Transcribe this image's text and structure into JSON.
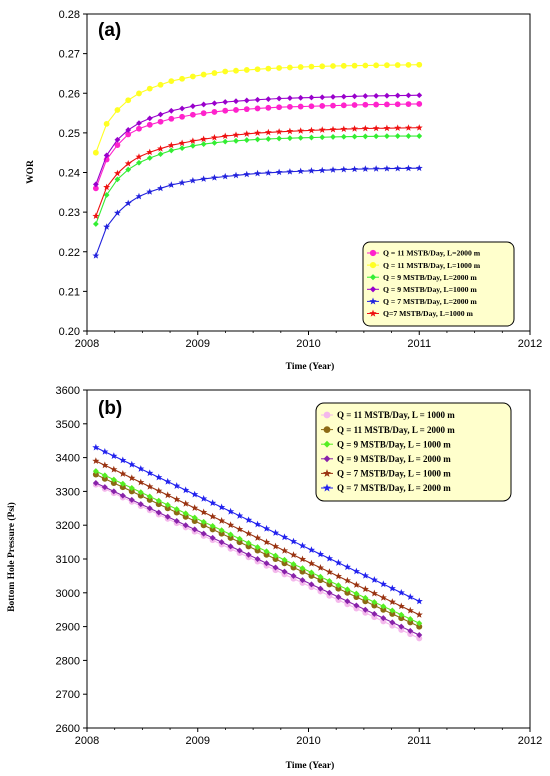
{
  "chart_data": [
    {
      "type": "line",
      "panel_label": "(a)",
      "xlabel": "Time (Year)",
      "ylabel": "WOR",
      "xlim": [
        2008,
        2012
      ],
      "ylim": [
        0.2,
        0.28
      ],
      "xticks": [
        "2008",
        "2009",
        "2010",
        "2011",
        "2012"
      ],
      "yticks": [
        "0.20",
        "0.21",
        "0.22",
        "0.23",
        "0.24",
        "0.25",
        "0.26",
        "0.27",
        "0.28"
      ],
      "grid": false,
      "legend_position": "bottom-right",
      "x": [
        2008.08,
        2008.17,
        2008.25,
        2008.33,
        2008.5,
        2008.75,
        2009.0,
        2009.25,
        2009.5,
        2009.75,
        2010.0,
        2010.25,
        2010.5,
        2010.75,
        2011.0
      ],
      "series": [
        {
          "name": "Q = 11 MSTB/Day, L=2000 m",
          "color": "#ff22cc",
          "marker": "circle",
          "values": [
            0.236,
            0.243,
            0.246,
            0.249,
            0.2515,
            0.2535,
            0.2548,
            0.2556,
            0.2561,
            0.2565,
            0.2567,
            0.2569,
            0.2571,
            0.2572,
            0.2573
          ]
        },
        {
          "name": "Q = 11 MSTB/Day, L=1000 m",
          "color": "#ffff22",
          "marker": "circle",
          "values": [
            0.245,
            0.252,
            0.255,
            0.2575,
            0.2605,
            0.263,
            0.2645,
            0.2655,
            0.266,
            0.2664,
            0.2667,
            0.2669,
            0.267,
            0.2671,
            0.2672
          ]
        },
        {
          "name": "Q = 9 MSTB/Day, L=2000 m",
          "color": "#33ee33",
          "marker": "diamond",
          "values": [
            0.227,
            0.234,
            0.2375,
            0.24,
            0.243,
            0.2455,
            0.247,
            0.2478,
            0.2483,
            0.2486,
            0.2488,
            0.249,
            0.2491,
            0.2492,
            0.2492
          ]
        },
        {
          "name": "Q = 9 MSTB/Day, L=1000 m",
          "color": "#9900cc",
          "marker": "diamond",
          "values": [
            0.237,
            0.244,
            0.2475,
            0.25,
            0.253,
            0.2555,
            0.257,
            0.2578,
            0.2583,
            0.2587,
            0.2589,
            0.2591,
            0.2593,
            0.2594,
            0.2595
          ]
        },
        {
          "name": "Q = 7 MSTB/Day, L=2000 m",
          "color": "#2222dd",
          "marker": "star",
          "values": [
            0.219,
            0.226,
            0.229,
            0.2315,
            0.2345,
            0.2368,
            0.2382,
            0.239,
            0.2397,
            0.2401,
            0.2404,
            0.2407,
            0.2409,
            0.241,
            0.2411
          ]
        },
        {
          "name": "Q=7 MSTB/Day, L=1000 m",
          "color": "#ee1111",
          "marker": "star",
          "values": [
            0.229,
            0.236,
            0.239,
            0.2415,
            0.2445,
            0.2468,
            0.2482,
            0.2492,
            0.2499,
            0.2503,
            0.2506,
            0.2509,
            0.2511,
            0.2512,
            0.2513
          ]
        }
      ]
    },
    {
      "type": "line",
      "panel_label": "(b)",
      "xlabel": "Time (Year)",
      "ylabel": "Bottom Hole Pressure (Psi)",
      "xlim": [
        2008,
        2012
      ],
      "ylim": [
        2600,
        3600
      ],
      "xticks": [
        "2008",
        "2009",
        "2010",
        "2011",
        "2012"
      ],
      "yticks": [
        "2600",
        "2700",
        "2800",
        "2900",
        "3000",
        "3100",
        "3200",
        "3300",
        "3400",
        "3500",
        "3600"
      ],
      "grid": false,
      "legend_position": "top-right",
      "x": [
        2008.08,
        2011.0
      ],
      "series": [
        {
          "name": "Q = 11 MSTB/Day, L = 1000 m",
          "color": "#f4b8ec",
          "marker": "circle",
          "values": [
            3320,
            2865
          ]
        },
        {
          "name": "Q = 11 MSTB/Day, L = 2000 m",
          "color": "#8c6a14",
          "marker": "circle",
          "values": [
            3350,
            2900
          ]
        },
        {
          "name": "Q = 9 MSTB/Day, L = 1000 m",
          "color": "#55ee22",
          "marker": "diamond",
          "values": [
            3360,
            2910
          ]
        },
        {
          "name": "Q = 9 MSTB/Day, L = 2000 m",
          "color": "#8822aa",
          "marker": "diamond",
          "values": [
            3325,
            2875
          ]
        },
        {
          "name": "Q = 7 MSTB/Day, L = 1000 m",
          "color": "#993311",
          "marker": "star",
          "values": [
            3390,
            2935
          ]
        },
        {
          "name": "Q = 7 MSTB/Day, L = 2000 m",
          "color": "#2222ee",
          "marker": "star",
          "values": [
            3430,
            2975
          ]
        }
      ]
    }
  ]
}
